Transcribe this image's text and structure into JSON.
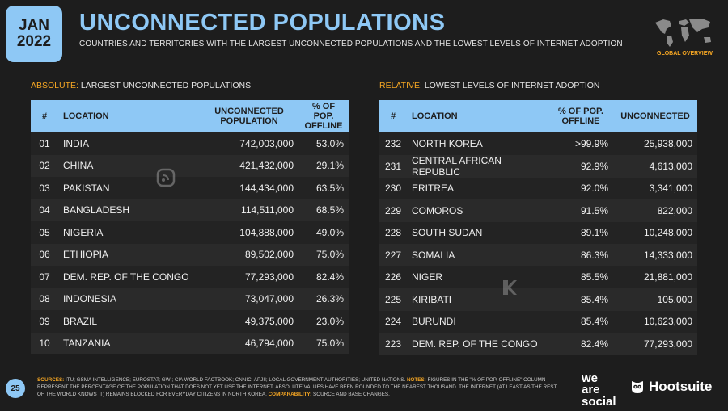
{
  "header": {
    "month": "JAN",
    "year": "2022",
    "title": "UNCONNECTED POPULATIONS",
    "subtitle": "COUNTRIES AND TERRITORIES WITH THE LARGEST UNCONNECTED POPULATIONS AND THE LOWEST LEVELS OF INTERNET ADOPTION",
    "section_badge": "GLOBAL OVERVIEW"
  },
  "absolute": {
    "label_key": "ABSOLUTE:",
    "label_text": " LARGEST UNCONNECTED POPULATIONS",
    "headers": [
      "#",
      "LOCATION",
      "UNCONNECTED POPULATION",
      "% OF POP. OFFLINE"
    ],
    "rows": [
      [
        "01",
        "INDIA",
        "742,003,000",
        "53.0%"
      ],
      [
        "02",
        "CHINA",
        "421,432,000",
        "29.1%"
      ],
      [
        "03",
        "PAKISTAN",
        "144,434,000",
        "63.5%"
      ],
      [
        "04",
        "BANGLADESH",
        "114,511,000",
        "68.5%"
      ],
      [
        "05",
        "NIGERIA",
        "104,888,000",
        "49.0%"
      ],
      [
        "06",
        "ETHIOPIA",
        "89,502,000",
        "75.0%"
      ],
      [
        "07",
        "DEM. REP. OF THE CONGO",
        "77,293,000",
        "82.4%"
      ],
      [
        "08",
        "INDONESIA",
        "73,047,000",
        "26.3%"
      ],
      [
        "09",
        "BRAZIL",
        "49,375,000",
        "23.0%"
      ],
      [
        "10",
        "TANZANIA",
        "46,794,000",
        "75.0%"
      ]
    ]
  },
  "relative": {
    "label_key": "RELATIVE:",
    "label_text": " LOWEST LEVELS OF INTERNET ADOPTION",
    "headers": [
      "#",
      "LOCATION",
      "% OF POP. OFFLINE",
      "UNCONNECTED"
    ],
    "rows": [
      [
        "232",
        "NORTH KOREA",
        ">99.9%",
        "25,938,000"
      ],
      [
        "231",
        "CENTRAL AFRICAN REPUBLIC",
        "92.9%",
        "4,613,000"
      ],
      [
        "230",
        "ERITREA",
        "92.0%",
        "3,341,000"
      ],
      [
        "229",
        "COMOROS",
        "91.5%",
        "822,000"
      ],
      [
        "228",
        "SOUTH SUDAN",
        "89.1%",
        "10,248,000"
      ],
      [
        "227",
        "SOMALIA",
        "86.3%",
        "14,333,000"
      ],
      [
        "226",
        "NIGER",
        "85.5%",
        "21,881,000"
      ],
      [
        "225",
        "KIRIBATI",
        "85.4%",
        "105,000"
      ],
      [
        "224",
        "BURUNDI",
        "85.4%",
        "10,623,000"
      ],
      [
        "223",
        "DEM. REP. OF THE CONGO",
        "82.4%",
        "77,293,000"
      ]
    ]
  },
  "footer": {
    "page": "25",
    "sources_key": "SOURCES:",
    "sources_text": " ITU; GSMA INTELLIGENCE; EUROSTAT; GWI; CIA WORLD FACTBOOK; CNNIC; APJII; LOCAL GOVERNMENT AUTHORITIES; UNITED NATIONS.",
    "notes_key": "NOTES:",
    "notes_text": " FIGURES IN THE \"% OF POP. OFFLINE\" COLUMN REPRESENT THE PERCENTAGE OF THE POPULATION THAT DOES NOT YET USE THE INTERNET. ABSOLUTE VALUES HAVE BEEN ROUNDED TO THE NEAREST THOUSAND. THE INTERNET (AT LEAST AS THE REST OF THE WORLD KNOWS IT) REMAINS BLOCKED FOR EVERYDAY CITIZENS IN NORTH KOREA.",
    "comp_key": "COMPARABILITY:",
    "comp_text": " SOURCE AND BASE CHANGES."
  },
  "brands": {
    "was_line1": "we",
    "was_line2": "are",
    "was_line3": "social",
    "hootsuite": "Hootsuite"
  },
  "colors": {
    "accent_blue": "#8ec8f5",
    "accent_orange": "#f5a623",
    "background": "#1d1d1d"
  }
}
